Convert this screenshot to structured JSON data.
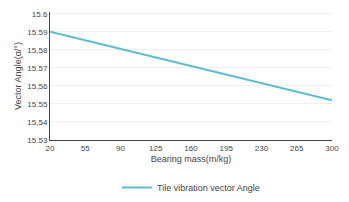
{
  "chart_data": {
    "type": "line",
    "xlabel": "Bearing mass(m/kg)",
    "ylabel": "Vector Angle(α/°)",
    "x": [
      20,
      300
    ],
    "series": [
      {
        "name": "Tile vibration vector Angle",
        "color": "#5bbcd2",
        "values": [
          15.59,
          15.552
        ]
      }
    ],
    "xlim": [
      20,
      300
    ],
    "ylim": [
      15.53,
      15.601
    ],
    "xticks": [
      20,
      55,
      90,
      125,
      160,
      195,
      230,
      265,
      300
    ],
    "yticks": [
      15.53,
      15.54,
      15.55,
      15.56,
      15.57,
      15.58,
      15.59,
      15.6
    ],
    "grid": "y",
    "legend": "bottom"
  }
}
